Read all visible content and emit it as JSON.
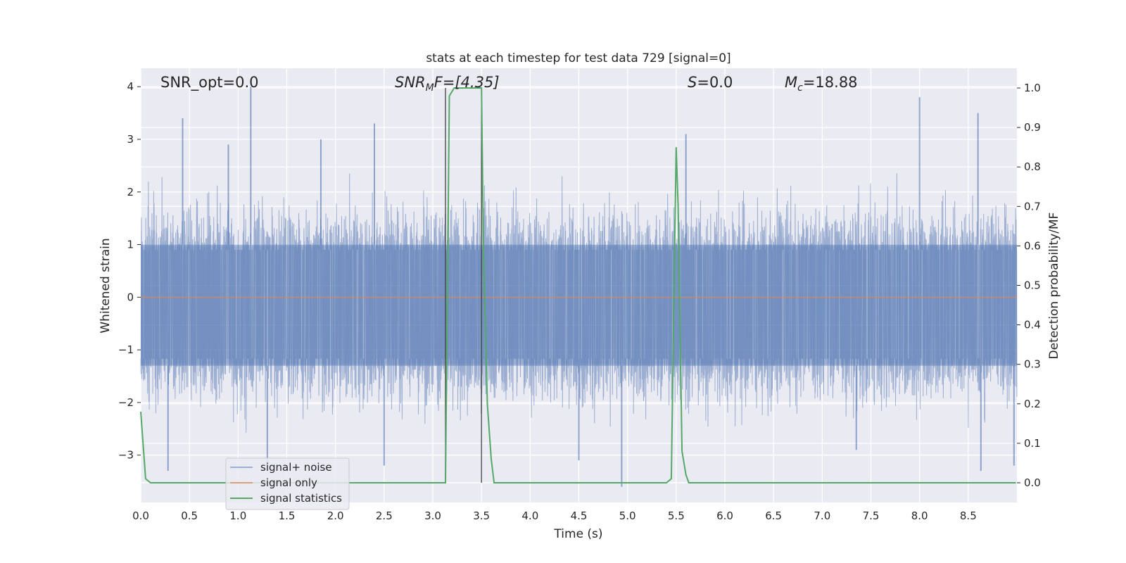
{
  "chart_data": {
    "type": "line",
    "title": "stats at each timestep for test data 729 [signal=0]",
    "xlabel": "Time (s)",
    "ylabel_left": "Whitened strain",
    "ylabel_right": "Detection probability/MF",
    "xlim": [
      0.0,
      9.0
    ],
    "ylim_left": [
      -3.9,
      4.35
    ],
    "ylim_right": [
      -0.05,
      1.05
    ],
    "x_ticks": [
      "0.0",
      "0.5",
      "1.0",
      "1.5",
      "2.0",
      "2.5",
      "3.0",
      "3.5",
      "4.0",
      "4.5",
      "5.0",
      "5.5",
      "6.0",
      "6.5",
      "7.0",
      "7.5",
      "8.0",
      "8.5"
    ],
    "y_ticks_left": [
      "4",
      "3",
      "2",
      "1",
      "0",
      "−1",
      "−2",
      "−3"
    ],
    "y_ticks_right": [
      "1.0",
      "0.9",
      "0.8",
      "0.7",
      "0.6",
      "0.5",
      "0.4",
      "0.3",
      "0.2",
      "0.1",
      "0.0"
    ],
    "grid": true,
    "legend_position": "lower-left",
    "annotations": {
      "snr_opt": "SNR_opt=0.0",
      "snr_mf_prefix": "SNR",
      "snr_mf_sub": "M",
      "snr_mf_suffix": "F=[4.35]",
      "s_prefix": "S",
      "s_suffix": "=0.0",
      "mc_prefix": "M",
      "mc_sub": "c",
      "mc_suffix": "=18.88"
    },
    "vertical_lines_x": [
      3.13,
      3.5
    ],
    "series": [
      {
        "name": "signal+ noise",
        "color": "#4c72b0",
        "axis": "left",
        "description_values": "Gaussian noise, approx range -3.6 to 4.0",
        "envelope": {
          "lower": -1.3,
          "upper": 1.0
        }
      },
      {
        "name": "signal only",
        "color": "#dd8452",
        "axis": "left",
        "x": [
          0.0,
          9.0
        ],
        "y": [
          0.0,
          0.0
        ]
      },
      {
        "name": "signal statistics",
        "color": "#55a868",
        "axis": "right",
        "x": [
          0.0,
          0.05,
          0.1,
          0.15,
          3.0,
          3.1,
          3.13,
          3.17,
          3.22,
          3.28,
          3.35,
          3.48,
          3.5,
          3.52,
          3.56,
          3.6,
          3.63,
          3.7,
          5.4,
          5.45,
          5.5,
          5.52,
          5.56,
          5.6,
          5.63,
          8.99
        ],
        "y": [
          0.18,
          0.01,
          0.0,
          0.0,
          0.0,
          0.0,
          0.0,
          0.98,
          1.0,
          1.0,
          1.0,
          1.0,
          1.0,
          0.6,
          0.2,
          0.06,
          0.0,
          0.0,
          0.0,
          0.01,
          0.85,
          0.7,
          0.08,
          0.02,
          0.0,
          0.0
        ]
      }
    ],
    "strain_spikes": [
      {
        "x": 0.43,
        "y": 3.4
      },
      {
        "x": 1.13,
        "y": 4.0
      },
      {
        "x": 0.9,
        "y": 2.9
      },
      {
        "x": 1.85,
        "y": 3.0
      },
      {
        "x": 2.4,
        "y": 3.3
      },
      {
        "x": 5.6,
        "y": 3.1
      },
      {
        "x": 8.0,
        "y": 3.8
      },
      {
        "x": 8.6,
        "y": 3.5
      },
      {
        "x": 1.3,
        "y": -3.2
      },
      {
        "x": 0.28,
        "y": -3.3
      },
      {
        "x": 2.5,
        "y": -3.2
      },
      {
        "x": 4.94,
        "y": -3.6
      },
      {
        "x": 8.63,
        "y": -3.3
      },
      {
        "x": 8.97,
        "y": -3.2
      },
      {
        "x": 4.5,
        "y": -3.1
      },
      {
        "x": 7.35,
        "y": -2.9
      }
    ]
  }
}
